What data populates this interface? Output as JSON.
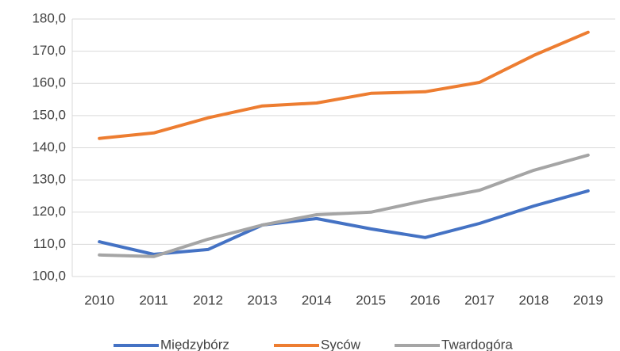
{
  "chart_data": {
    "type": "line",
    "categories": [
      "2010",
      "2011",
      "2012",
      "2013",
      "2014",
      "2015",
      "2016",
      "2017",
      "2018",
      "2019"
    ],
    "series": [
      {
        "name": "Międzybórz",
        "color": "#4472c4",
        "values": [
          110.8,
          106.9,
          108.4,
          116.0,
          118.0,
          114.8,
          112.1,
          116.5,
          121.9,
          126.6
        ]
      },
      {
        "name": "Syców",
        "color": "#ed7d31",
        "values": [
          142.9,
          144.6,
          149.3,
          153.0,
          153.9,
          156.9,
          157.4,
          160.3,
          168.7,
          175.9
        ]
      },
      {
        "name": "Twardogóra",
        "color": "#a5a5a5",
        "values": [
          106.7,
          106.2,
          111.6,
          116.0,
          119.2,
          120.0,
          123.6,
          126.8,
          133.0,
          137.7
        ]
      }
    ],
    "ylim": [
      100,
      180
    ],
    "yticks": [
      {
        "value": 100,
        "label": "100,0"
      },
      {
        "value": 110,
        "label": "110,0"
      },
      {
        "value": 120,
        "label": "120,0"
      },
      {
        "value": 130,
        "label": "130,0"
      },
      {
        "value": 140,
        "label": "140,0"
      },
      {
        "value": 150,
        "label": "150,0"
      },
      {
        "value": 160,
        "label": "160,0"
      },
      {
        "value": 170,
        "label": "170,0"
      },
      {
        "value": 180,
        "label": "180,0"
      }
    ],
    "grid": true,
    "legend": "bottom"
  }
}
